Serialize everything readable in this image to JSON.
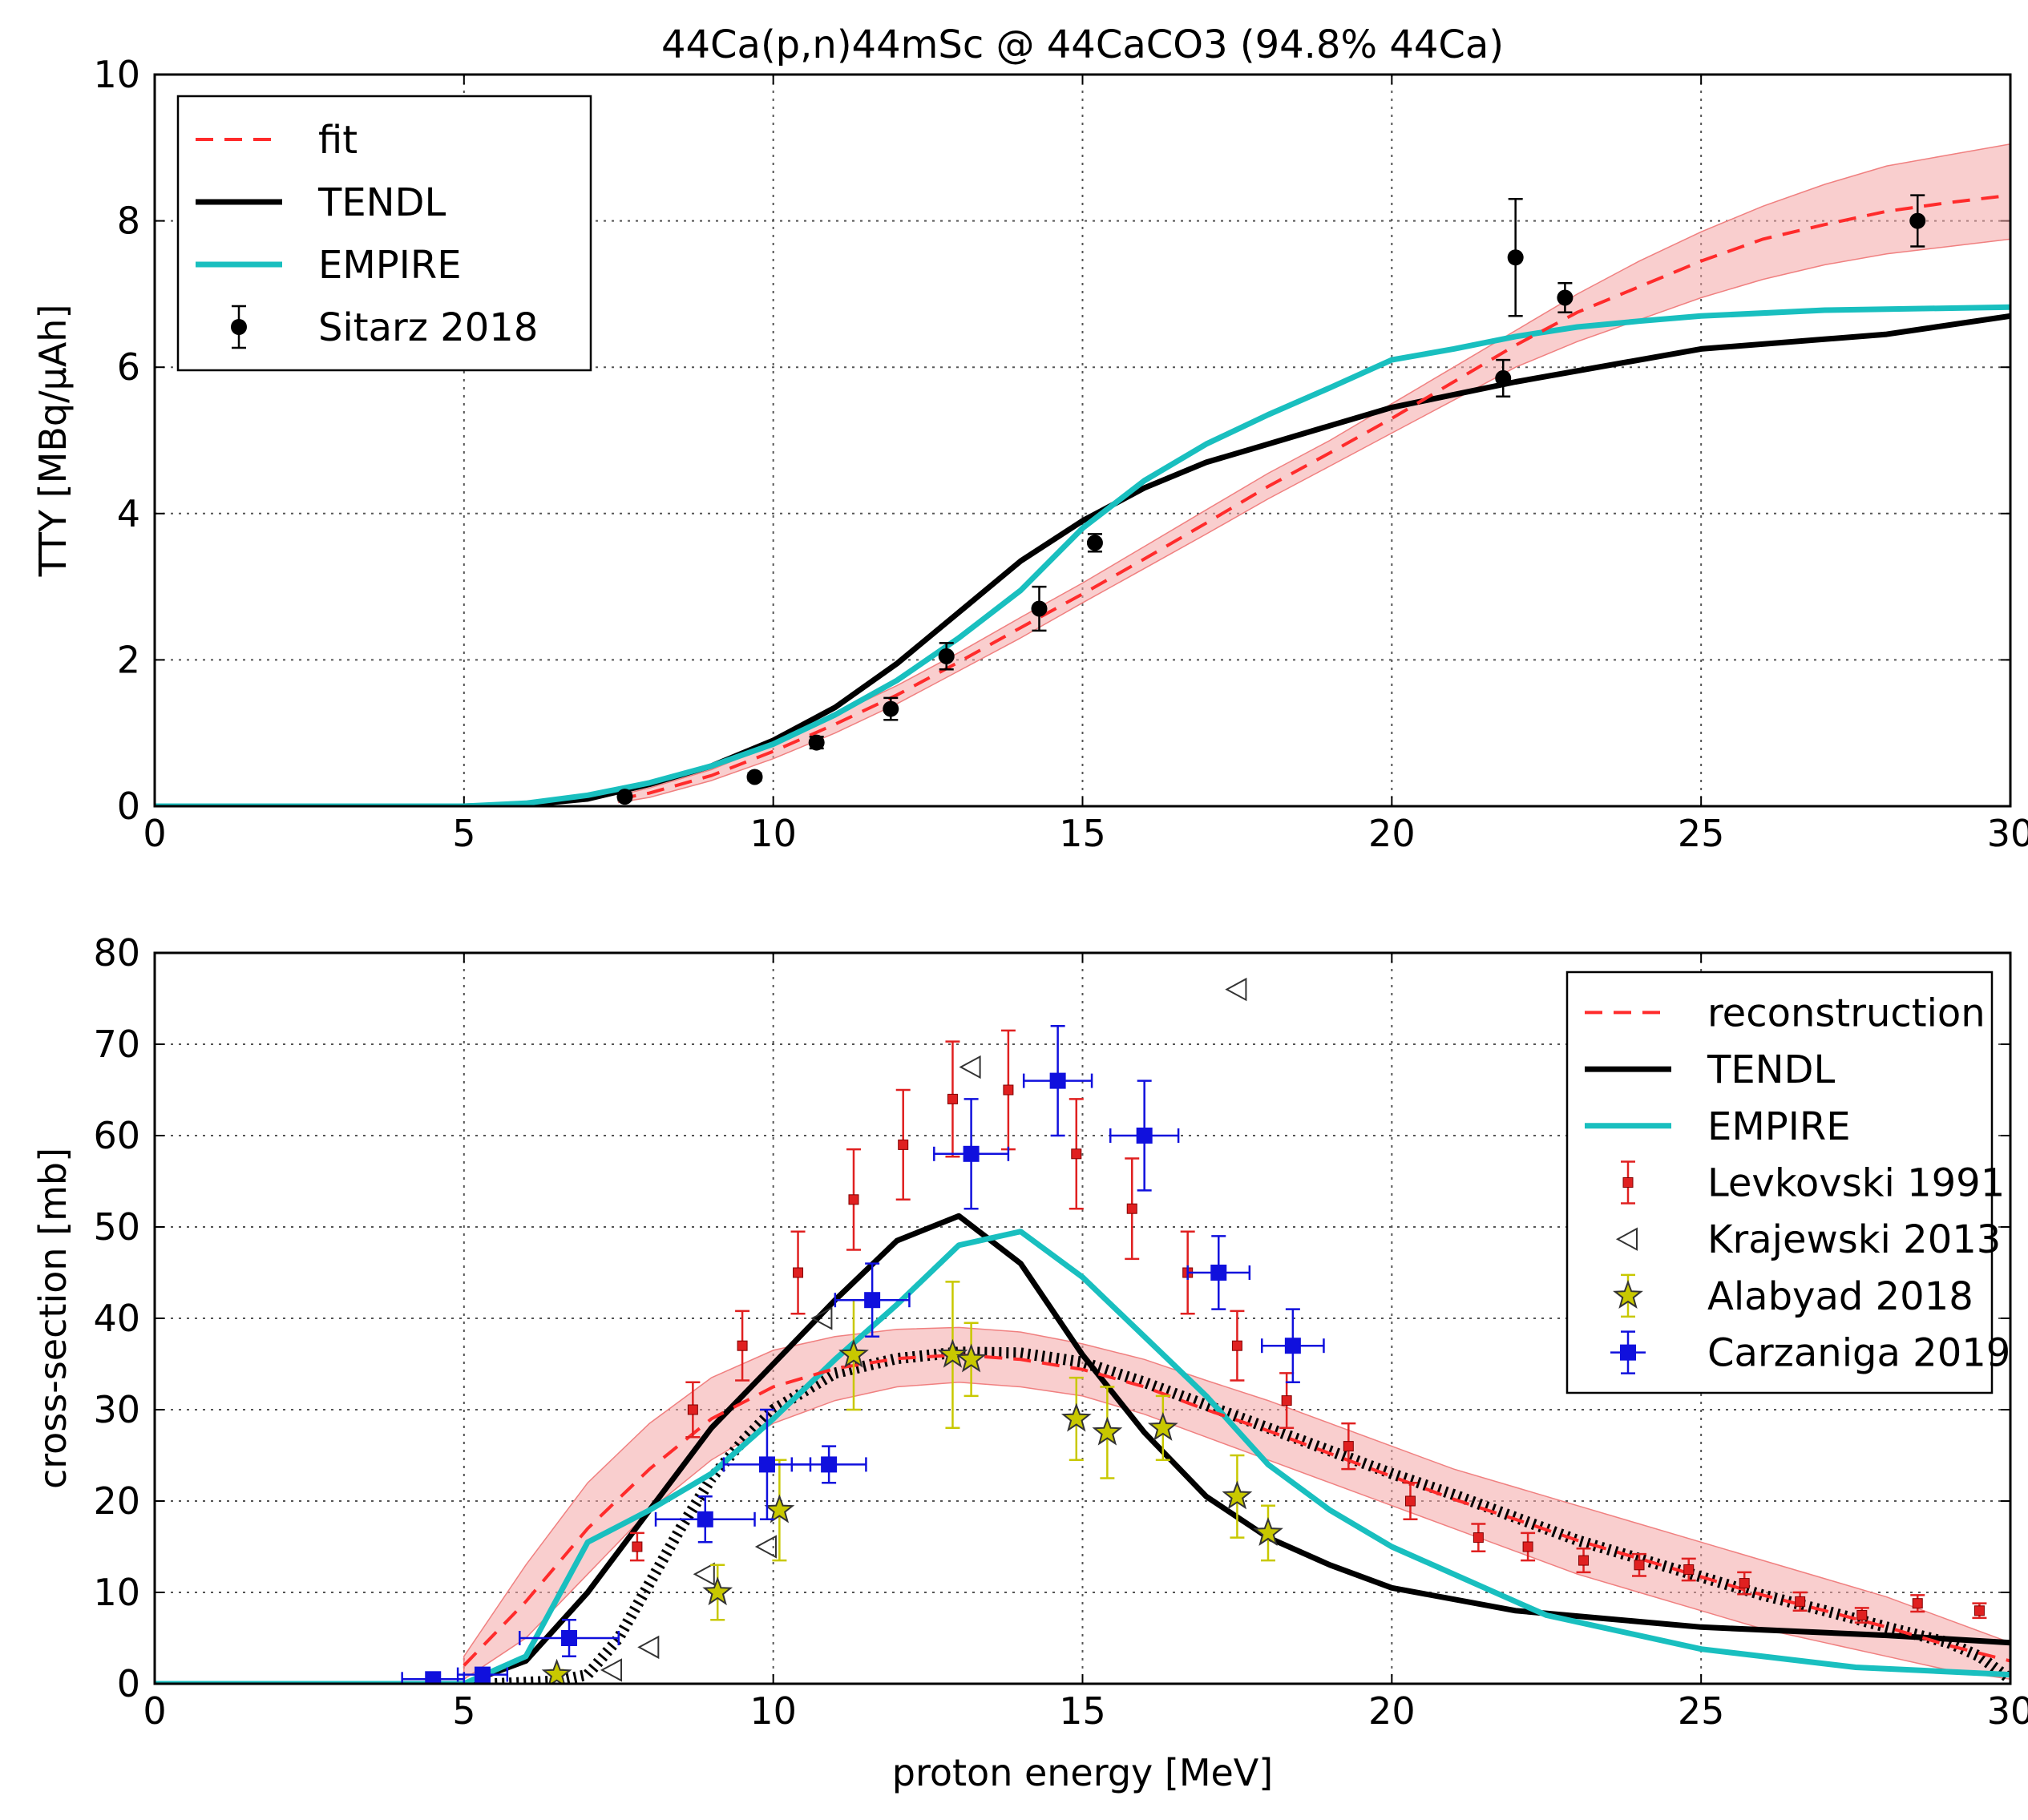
{
  "chart_data": [
    {
      "type": "line",
      "title": "44Ca(p,n)44mSc @ 44CaCO3 (94.8% 44Ca)",
      "xlabel": "",
      "ylabel": "TTY [MBq/μAh]",
      "xlim": [
        0,
        30
      ],
      "ylim": [
        0,
        10
      ],
      "xticks": [
        "0",
        "5",
        "10",
        "15",
        "20",
        "25",
        "30"
      ],
      "yticks": [
        "0",
        "2",
        "4",
        "6",
        "8",
        "10"
      ],
      "grid": true,
      "legend_position": "top-left",
      "band": {
        "name": "fit uncertainty",
        "color": "#f4a6a6",
        "x": [
          7.5,
          8,
          9,
          10,
          11,
          12,
          13,
          14,
          15,
          16,
          17,
          18,
          19,
          20,
          21,
          22,
          23,
          24,
          25,
          26,
          27,
          28,
          29,
          30
        ],
        "lower": [
          0.05,
          0.12,
          0.35,
          0.65,
          1.0,
          1.4,
          1.85,
          2.3,
          2.78,
          3.25,
          3.72,
          4.2,
          4.65,
          5.1,
          5.55,
          6.0,
          6.35,
          6.65,
          6.95,
          7.2,
          7.4,
          7.55,
          7.65,
          7.75
        ],
        "upper": [
          0.15,
          0.25,
          0.5,
          0.85,
          1.25,
          1.65,
          2.1,
          2.58,
          3.05,
          3.55,
          4.05,
          4.55,
          5.0,
          5.5,
          6.0,
          6.5,
          7.0,
          7.45,
          7.85,
          8.2,
          8.5,
          8.75,
          8.9,
          9.05
        ]
      },
      "series": [
        {
          "name": "fit",
          "style": "dashed",
          "color": "#ff2b2b",
          "x": [
            7.5,
            8,
            9,
            10,
            11,
            12,
            13,
            14,
            15,
            16,
            17,
            18,
            19,
            20,
            21,
            22,
            23,
            24,
            25,
            26,
            27,
            28,
            29,
            30
          ],
          "y": [
            0.1,
            0.18,
            0.42,
            0.75,
            1.12,
            1.52,
            1.97,
            2.44,
            2.9,
            3.38,
            3.87,
            4.37,
            4.83,
            5.3,
            5.8,
            6.3,
            6.75,
            7.1,
            7.45,
            7.75,
            7.95,
            8.13,
            8.25,
            8.35
          ]
        },
        {
          "name": "TENDL",
          "style": "solid",
          "color": "#000000",
          "x": [
            0,
            5,
            6,
            7,
            8,
            9,
            10,
            11,
            12,
            13,
            14,
            15,
            16,
            17,
            18,
            19,
            20,
            22,
            25,
            28,
            30
          ],
          "y": [
            0,
            0,
            0.02,
            0.1,
            0.3,
            0.55,
            0.9,
            1.35,
            1.95,
            2.65,
            3.35,
            3.9,
            4.35,
            4.7,
            4.95,
            5.2,
            5.45,
            5.8,
            6.25,
            6.45,
            6.7
          ]
        },
        {
          "name": "EMPIRE",
          "style": "solid",
          "color": "#19bfbf",
          "x": [
            0,
            5,
            6,
            7,
            8,
            9,
            10,
            11,
            12,
            13,
            14,
            15,
            16,
            17,
            18,
            19,
            20,
            21,
            22,
            23,
            24,
            25,
            27,
            30
          ],
          "y": [
            0,
            0,
            0.04,
            0.15,
            0.32,
            0.55,
            0.85,
            1.25,
            1.72,
            2.3,
            2.95,
            3.8,
            4.45,
            4.95,
            5.35,
            5.72,
            6.1,
            6.25,
            6.42,
            6.55,
            6.63,
            6.7,
            6.78,
            6.82
          ]
        }
      ],
      "points": [
        {
          "name": "Sitarz 2018",
          "color": "#000000",
          "marker": "circle",
          "x": [
            7.6,
            9.7,
            10.7,
            11.9,
            12.8,
            14.3,
            15.2,
            21.8,
            22.0,
            22.8,
            28.5
          ],
          "y": [
            0.13,
            0.4,
            0.87,
            1.33,
            2.05,
            2.7,
            3.6,
            5.85,
            7.5,
            6.95,
            8.0
          ],
          "yerr": [
            0.05,
            0.05,
            0.08,
            0.15,
            0.18,
            0.3,
            0.12,
            0.25,
            0.8,
            0.2,
            0.35
          ]
        }
      ]
    },
    {
      "type": "line",
      "title": "",
      "xlabel": "proton energy [MeV]",
      "ylabel": "cross-section [mb]",
      "xlim": [
        0,
        30
      ],
      "ylim": [
        0,
        80
      ],
      "xticks": [
        "0",
        "5",
        "10",
        "15",
        "20",
        "25",
        "30"
      ],
      "yticks": [
        "0",
        "10",
        "20",
        "30",
        "40",
        "50",
        "60",
        "70",
        "80"
      ],
      "grid": true,
      "legend_position": "top-right",
      "band": {
        "name": "reconstruction uncertainty",
        "color": "#f4a6a6",
        "x": [
          5,
          6,
          7,
          8,
          9,
          10,
          11,
          12,
          13,
          14,
          15,
          16,
          17,
          18,
          19,
          20,
          21,
          22,
          23,
          24,
          25,
          26,
          27,
          28,
          29,
          30
        ],
        "lower": [
          0.5,
          5,
          12,
          19,
          24.5,
          28.5,
          31,
          32.5,
          33,
          32.5,
          31.5,
          29.5,
          27,
          24.5,
          22,
          19.5,
          17,
          14.5,
          12,
          10,
          8,
          6,
          4.5,
          3,
          1.5,
          0.5
        ],
        "upper": [
          3,
          13,
          22,
          28.5,
          33.5,
          36.5,
          38,
          38.8,
          39,
          38.5,
          37.2,
          35.5,
          33.2,
          31,
          28.5,
          26,
          23.5,
          21.5,
          19.5,
          17.5,
          15.5,
          13.5,
          11.5,
          9.5,
          7,
          4.5
        ]
      },
      "series": [
        {
          "name": "reconstruction",
          "style": "dashed",
          "color": "#ff2b2b",
          "x": [
            5,
            6,
            7,
            8,
            9,
            10,
            11,
            12,
            13,
            14,
            15,
            16,
            17,
            18,
            19,
            20,
            21,
            22,
            23,
            24,
            25,
            26,
            27,
            28,
            29,
            30
          ],
          "y": [
            2,
            9,
            17,
            23.5,
            29,
            32.5,
            34.5,
            35.6,
            36,
            35.5,
            34.4,
            32.5,
            30,
            27.7,
            25.2,
            22.7,
            20.2,
            18,
            15.7,
            13.7,
            11.7,
            9.7,
            8,
            6.2,
            4.2,
            2.5
          ]
        },
        {
          "name": "TENDL",
          "style": "solid",
          "color": "#000000",
          "x": [
            0,
            5,
            6,
            7,
            8,
            9,
            10,
            11,
            12,
            13,
            14,
            15,
            16,
            17,
            18,
            19,
            20,
            22,
            25,
            28,
            30
          ],
          "y": [
            0,
            0,
            2.5,
            10,
            19,
            28,
            35,
            42,
            48.5,
            51.2,
            46,
            36,
            27.5,
            20.5,
            16,
            13,
            10.5,
            8,
            6.2,
            5.3,
            4.5
          ]
        },
        {
          "name": "EMPIRE",
          "style": "solid",
          "color": "#19bfbf",
          "x": [
            0,
            5,
            6,
            7,
            8,
            9,
            10,
            11,
            12,
            13,
            14,
            15,
            16,
            17,
            18,
            19,
            20,
            22.5,
            25,
            27.5,
            30
          ],
          "y": [
            0,
            0,
            3,
            15.5,
            19,
            23,
            29,
            35.5,
            41.5,
            48,
            49.5,
            44.5,
            38,
            31.5,
            24,
            19,
            15,
            7.5,
            3.8,
            1.8,
            1
          ]
        },
        {
          "name": "unlabeled dotted curve",
          "style": "dotted",
          "color": "#000000",
          "x": [
            5.5,
            6.5,
            7,
            7.5,
            8,
            8.5,
            9,
            9.5,
            10,
            11,
            12,
            13,
            14,
            15,
            16,
            17,
            18,
            19,
            20,
            21,
            22,
            23,
            24,
            25,
            26,
            27,
            28,
            29,
            29.5,
            30
          ],
          "y": [
            0,
            0.3,
            1,
            5,
            11,
            17,
            22.5,
            26.5,
            30,
            34,
            35.6,
            36.3,
            36.2,
            35.2,
            33,
            30.5,
            28,
            25.5,
            23,
            20.7,
            18.2,
            15.7,
            13.7,
            11.7,
            9.7,
            8,
            6.2,
            4.5,
            3,
            0.5
          ]
        }
      ],
      "points": [
        {
          "name": "Levkovski 1991",
          "color": "#e02020",
          "marker": "square-small",
          "x": [
            7.8,
            8.7,
            9.5,
            10.4,
            11.3,
            12.1,
            12.9,
            13.8,
            14.9,
            15.8,
            16.7,
            17.5,
            18.3,
            19.3,
            20.3,
            21.4,
            22.2,
            23.1,
            24.0,
            24.8,
            25.7,
            26.6,
            27.6,
            28.5,
            29.5
          ],
          "y": [
            15,
            30,
            37,
            45,
            53,
            59,
            64,
            65,
            58,
            52,
            45,
            37,
            31,
            26,
            20,
            16,
            15,
            13.5,
            13,
            12.5,
            11,
            9,
            7.5,
            8.8,
            8
          ],
          "yerr": [
            1.5,
            3,
            3.8,
            4.5,
            5.5,
            6,
            6.3,
            6.5,
            6,
            5.5,
            4.5,
            3.8,
            3,
            2.5,
            2,
            1.5,
            1.5,
            1.3,
            1.2,
            1.2,
            1.2,
            1,
            0.8,
            0.9,
            0.8
          ]
        },
        {
          "name": "Krajewski 2013",
          "color": "#000000",
          "marker": "triangle-left",
          "x": [
            7.4,
            8.0,
            8.9,
            9.9,
            10.8,
            13.2,
            17.5
          ],
          "y": [
            1.5,
            4,
            12,
            15,
            40,
            67.5,
            76
          ]
        },
        {
          "name": "Alabyad 2018",
          "color": "#c8c800",
          "marker": "star",
          "x": [
            6.5,
            9.1,
            10.1,
            11.3,
            12.9,
            13.2,
            14.9,
            15.4,
            16.3,
            17.5,
            18.0
          ],
          "y": [
            1,
            10,
            19,
            36,
            36,
            35.5,
            29,
            27.5,
            28,
            20.5,
            16.5
          ],
          "yerr": [
            0.5,
            3,
            5.5,
            6,
            8,
            4,
            4.5,
            5,
            3.5,
            4.5,
            3
          ]
        },
        {
          "name": "Carzaniga 2019",
          "color": "#1010dd",
          "marker": "square",
          "x": [
            4.5,
            5.3,
            6.7,
            8.9,
            9.9,
            10.9,
            11.6,
            13.2,
            14.6,
            16.0,
            17.2,
            18.4
          ],
          "y": [
            0.5,
            1,
            5,
            18,
            24,
            24,
            42,
            58,
            66,
            60,
            45,
            37
          ],
          "yerr": [
            0.5,
            0.5,
            2,
            2.5,
            6,
            2,
            4,
            6,
            6,
            6,
            4,
            4
          ],
          "xerr": [
            0.5,
            0.4,
            0.8,
            0.8,
            0.7,
            0.6,
            0.6,
            0.6,
            0.55,
            0.55,
            0.5,
            0.5
          ]
        }
      ]
    }
  ]
}
